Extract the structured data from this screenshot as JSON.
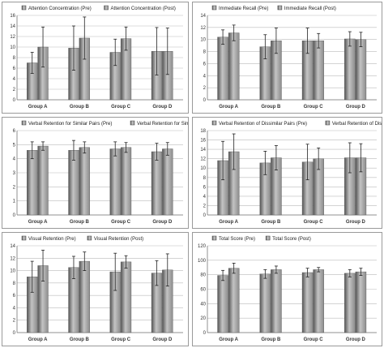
{
  "colors": {
    "bar": "#8c8c8c",
    "bar_dark": "#555555",
    "bar_light": "#c4c4c4",
    "axis": "#777777",
    "grid": "#bbbbbb",
    "panel_border": "#9a9a9a"
  },
  "chart_data": [
    {
      "type": "bar",
      "title": "",
      "xlabel": "",
      "ylabel": "",
      "categories": [
        "Group A",
        "Group B",
        "Group C",
        "Group D"
      ],
      "ylim": [
        0,
        16
      ],
      "yticks": [
        0,
        2,
        4,
        6,
        8,
        10,
        12,
        14,
        16
      ],
      "tick_labels": [
        "0",
        "2",
        "4",
        "6",
        "8",
        "10",
        "12",
        "14",
        "16"
      ],
      "grid": true,
      "legend": "top",
      "series": [
        {
          "name": "Attention Concentration (Pre)",
          "values": [
            7.0,
            9.8,
            9.0,
            9.2
          ],
          "errors": [
            2.0,
            4.2,
            2.5,
            4.5
          ]
        },
        {
          "name": "Attention Concentration (Post)",
          "values": [
            10.0,
            11.7,
            11.6,
            9.2
          ],
          "errors": [
            3.8,
            4.0,
            2.2,
            4.4
          ]
        }
      ]
    },
    {
      "type": "bar",
      "title": "",
      "xlabel": "",
      "ylabel": "",
      "categories": [
        "Group A",
        "Group B",
        "Group C",
        "Group D"
      ],
      "ylim": [
        0,
        14
      ],
      "yticks": [
        0,
        2,
        4,
        6,
        8,
        10,
        12,
        14
      ],
      "tick_labels": [
        "0",
        "2",
        "4",
        "6",
        "8",
        "10",
        "12",
        "14"
      ],
      "grid": true,
      "legend": "top",
      "series": [
        {
          "name": "Immediate Recall (Pre)",
          "values": [
            10.4,
            8.8,
            9.8,
            10.1
          ],
          "errors": [
            1.2,
            2.0,
            2.1,
            1.2
          ]
        },
        {
          "name": "Immediate Recall (Post)",
          "values": [
            11.1,
            9.8,
            9.8,
            10.0
          ],
          "errors": [
            1.3,
            2.1,
            1.2,
            1.2
          ]
        }
      ]
    },
    {
      "type": "bar",
      "title": "",
      "xlabel": "",
      "ylabel": "",
      "categories": [
        "Group A",
        "Group B",
        "Group C",
        "Group D"
      ],
      "ylim": [
        0,
        6
      ],
      "yticks": [
        0,
        1,
        2,
        3,
        4,
        5,
        6
      ],
      "tick_labels": [
        "0",
        "1",
        "2",
        "3",
        "4",
        "5",
        "6"
      ],
      "grid": true,
      "legend": "top",
      "series": [
        {
          "name": "Verbal Retention for Similar Pairs (Pre)",
          "values": [
            4.6,
            4.6,
            4.7,
            4.5
          ],
          "errors": [
            0.6,
            0.7,
            0.5,
            0.6
          ]
        },
        {
          "name": "Verbal Retention for Similar Pairs (Post)",
          "values": [
            4.9,
            4.8,
            4.8,
            4.7
          ],
          "errors": [
            0.3,
            0.4,
            0.35,
            0.45
          ]
        }
      ]
    },
    {
      "type": "bar",
      "title": "",
      "xlabel": "",
      "ylabel": "",
      "categories": [
        "Group A",
        "Group B",
        "Group C",
        "Group D"
      ],
      "ylim": [
        0,
        18
      ],
      "yticks": [
        0,
        2,
        4,
        6,
        8,
        10,
        12,
        14,
        16,
        18
      ],
      "tick_labels": [
        "0",
        "2",
        "4",
        "6",
        "8",
        "10",
        "12",
        "14",
        "16",
        "18"
      ],
      "grid": true,
      "legend": "top",
      "series": [
        {
          "name": "Verbal Retention of Dissimilar Pairs (Pre)",
          "values": [
            11.6,
            11.1,
            11.3,
            12.2
          ],
          "errors": [
            4.1,
            2.5,
            3.8,
            3.2
          ]
        },
        {
          "name": "Verbal Retention of Dissimilar Pairs (Post)",
          "values": [
            13.5,
            12.2,
            12.0,
            12.2
          ],
          "errors": [
            3.8,
            2.6,
            2.3,
            3.0
          ]
        }
      ]
    },
    {
      "type": "bar",
      "title": "",
      "xlabel": "",
      "ylabel": "",
      "categories": [
        "Group A",
        "Group B",
        "Group C",
        "Group D"
      ],
      "ylim": [
        0,
        14
      ],
      "yticks": [
        0,
        2,
        4,
        6,
        8,
        10,
        12,
        14
      ],
      "tick_labels": [
        "0",
        "2",
        "4",
        "6",
        "8",
        "10",
        "12",
        "14"
      ],
      "grid": true,
      "legend": "top",
      "series": [
        {
          "name": "Visual Retention (Pre)",
          "values": [
            9.0,
            10.5,
            9.8,
            9.6
          ],
          "errors": [
            2.5,
            1.8,
            3.0,
            2.0
          ]
        },
        {
          "name": "Visual Retention (Post)",
          "values": [
            10.8,
            11.5,
            11.4,
            10.1
          ],
          "errors": [
            2.5,
            1.5,
            1.0,
            2.6
          ]
        }
      ]
    },
    {
      "type": "bar",
      "title": "",
      "xlabel": "",
      "ylabel": "",
      "categories": [
        "Group A",
        "Group B",
        "Group C",
        "Group D"
      ],
      "ylim": [
        0,
        120
      ],
      "yticks": [
        0,
        20,
        40,
        60,
        80,
        100,
        120
      ],
      "tick_labels": [
        "0",
        "20",
        "40",
        "60",
        "80",
        "100",
        "120"
      ],
      "grid": true,
      "legend": "top",
      "series": [
        {
          "name": "Total Score (Pre)",
          "values": [
            79,
            81,
            83,
            82
          ],
          "errors": [
            7,
            6,
            6,
            5
          ]
        },
        {
          "name": "Total Score (Post)",
          "values": [
            89,
            87,
            87,
            84
          ],
          "errors": [
            7,
            5,
            3,
            5
          ]
        }
      ]
    }
  ]
}
